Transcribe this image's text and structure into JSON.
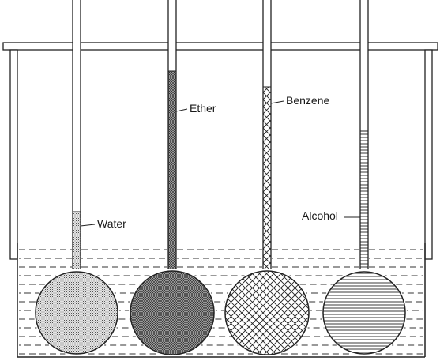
{
  "diagram": {
    "flasks": [
      {
        "liquid": "Water"
      },
      {
        "liquid": "Ether"
      },
      {
        "liquid": "Benzene"
      },
      {
        "liquid": "Alcohol"
      }
    ]
  }
}
